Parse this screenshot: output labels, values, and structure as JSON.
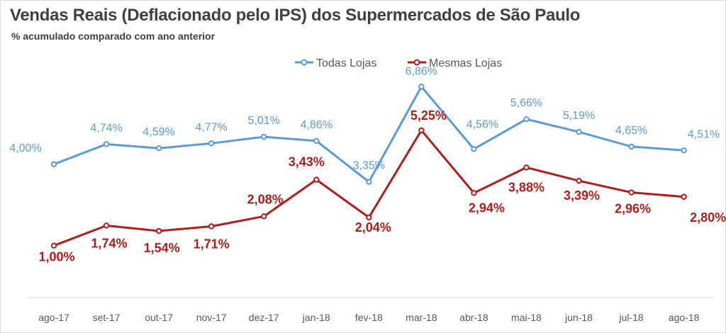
{
  "chart_data": {
    "type": "line",
    "title": "Vendas Reais (Deflacionado pelo IPS) dos Supermercados de São Paulo",
    "subtitle": "% acumulado  comparado  com ano anterior",
    "categories": [
      "ago-17",
      "set-17",
      "out-17",
      "nov-17",
      "dez-17",
      "jan-18",
      "fev-18",
      "mar-18",
      "abr-18",
      "mai-18",
      "jun-18",
      "jul-18",
      "ago-18"
    ],
    "series": [
      {
        "name": "Todas Lojas",
        "color": "#5b9bd5",
        "values": [
          4.0,
          4.74,
          4.59,
          4.77,
          5.01,
          4.86,
          3.35,
          6.86,
          4.56,
          5.66,
          5.19,
          4.65,
          4.51
        ],
        "labels": [
          "4,00%",
          "4,74%",
          "4,59%",
          "4,77%",
          "5,01%",
          "4,86%",
          "3,35%",
          "6,86%",
          "4,56%",
          "5,66%",
          "5,19%",
          "4,65%",
          "4,51%"
        ]
      },
      {
        "name": "Mesmas Lojas",
        "color": "#b11c1c",
        "values": [
          1.0,
          1.74,
          1.54,
          1.71,
          2.08,
          3.43,
          2.04,
          5.25,
          2.94,
          3.88,
          3.39,
          2.96,
          2.8
        ],
        "labels": [
          "1,00%",
          "1,74%",
          "1,54%",
          "1,71%",
          "2,08%",
          "3,43%",
          "2,04%",
          "5,25%",
          "2,94%",
          "3,88%",
          "3,39%",
          "2,96%",
          "2,80%"
        ]
      }
    ],
    "xlabel": "",
    "ylabel": "",
    "legend": "top-center",
    "grid": false
  }
}
